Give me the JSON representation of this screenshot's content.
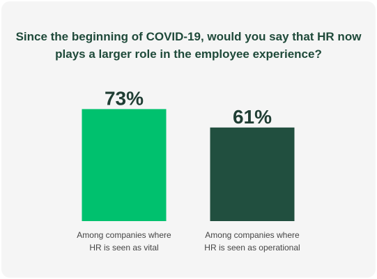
{
  "title_lines": [
    "Since the beginning of COVID-19, would you say that HR now",
    "plays a larger role in the employee experience?"
  ],
  "colors": {
    "background": "#f5f5f5",
    "title": "#1f4a3a",
    "value_label": "#1f3d33",
    "category_label": "#444444",
    "series": [
      "#00c16e",
      "#214f3f"
    ]
  },
  "chart_data": {
    "type": "bar",
    "title": "Since the beginning of COVID-19, would you say that HR now plays a larger role in the employee experience?",
    "categories": [
      [
        "Among companies where",
        "HR is seen as vital"
      ],
      [
        "Among companies where",
        "HR is seen as operational"
      ]
    ],
    "values": [
      73,
      61
    ],
    "value_labels": [
      "73%",
      "61%"
    ],
    "ylim": [
      0,
      100
    ],
    "grid": false,
    "legend": "none"
  }
}
